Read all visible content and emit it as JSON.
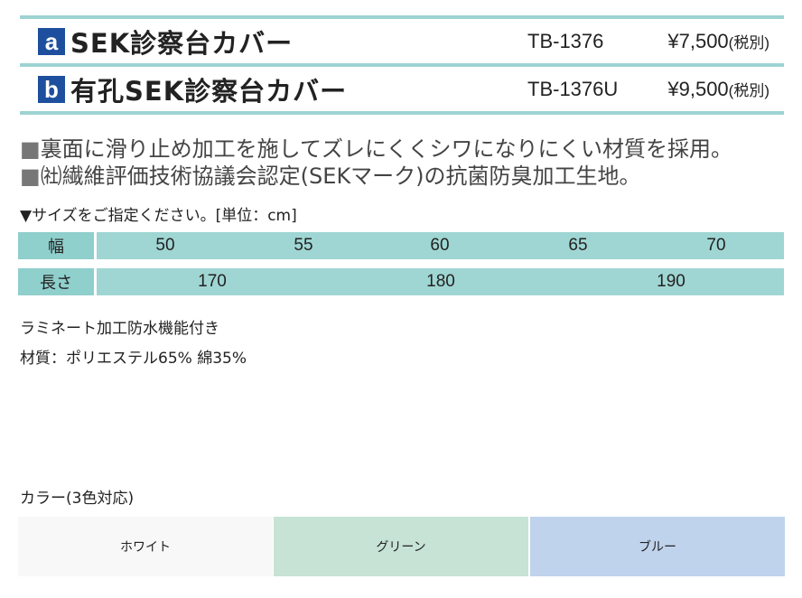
{
  "products": [
    {
      "badge": "a",
      "name": "SEK診察台カバー",
      "code": "TB-1376",
      "price": "¥7,500",
      "tax": "(税別)"
    },
    {
      "badge": "b",
      "name": "有孔SEK診察台カバー",
      "code": "TB-1376U",
      "price": "¥9,500",
      "tax": "(税別)"
    }
  ],
  "features": [
    "裏面に滑り止め加工を施してズレにくくシワになりにくい材質を採用。",
    "㈳繊維評価技術協議会認定(SEKマーク)の抗菌防臭加工生地。"
  ],
  "bullet_mark": "■",
  "size_note": "▼サイズをご指定ください。[単位：cm]",
  "size_table": {
    "width_label": "幅",
    "widths": [
      "50",
      "55",
      "60",
      "65",
      "70"
    ],
    "length_label": "長さ",
    "lengths": [
      "170",
      "180",
      "190"
    ]
  },
  "spec": [
    "ラミネート加工防水機能付き",
    "材質：ポリエステル65% 綿35%"
  ],
  "colors_title": "カラー(3色対応)",
  "colors": [
    {
      "name": "ホワイト",
      "hex": "#f7f8f7"
    },
    {
      "name": "グリーン",
      "hex": "#c6e3d6"
    },
    {
      "name": "ブルー",
      "hex": "#c0d3ec"
    }
  ],
  "accent": "#9dd3d2",
  "badge_color": "#1d4f9e"
}
